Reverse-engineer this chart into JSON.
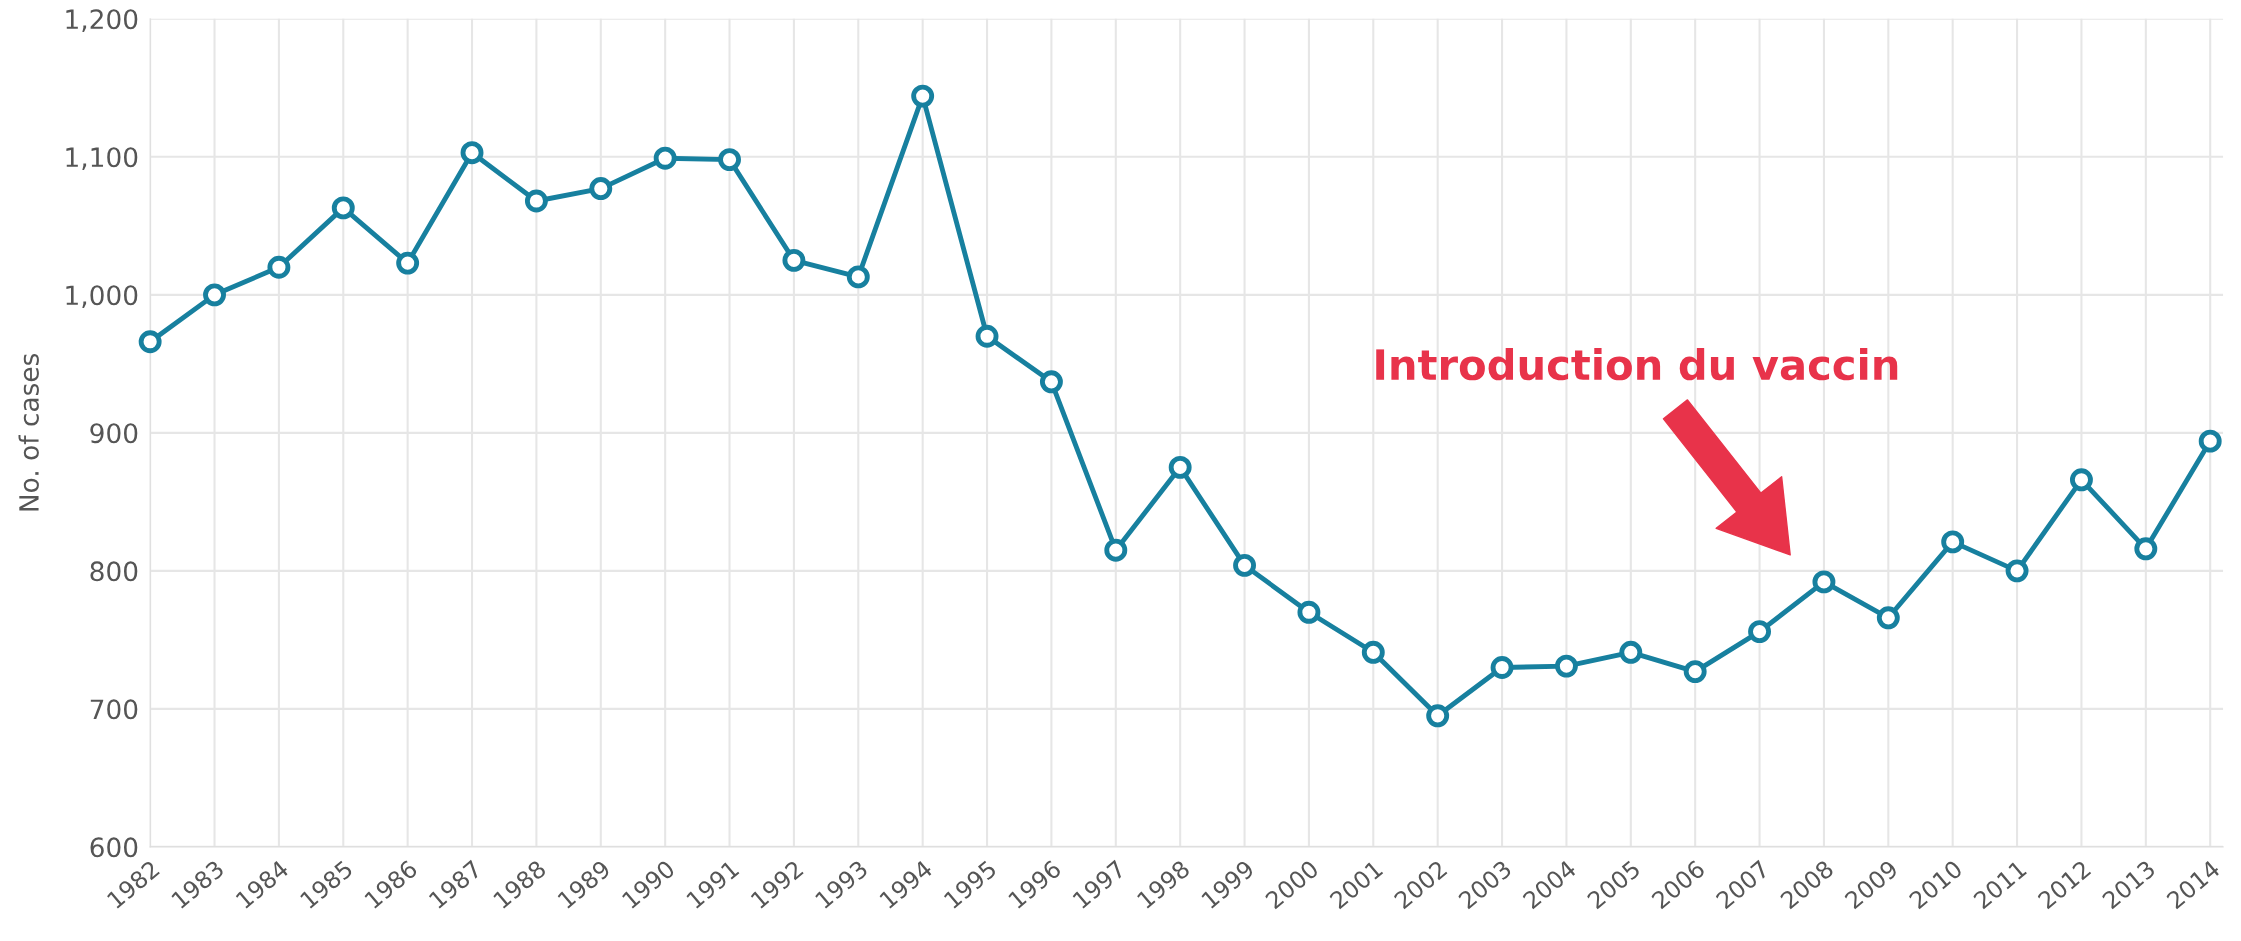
{
  "chart_data": {
    "type": "line",
    "ylabel": "No. of cases",
    "categories": [
      "1982",
      "1983",
      "1984",
      "1985",
      "1986",
      "1987",
      "1988",
      "1989",
      "1990",
      "1991",
      "1992",
      "1993",
      "1994",
      "1995",
      "1996",
      "1997",
      "1998",
      "1999",
      "2000",
      "2001",
      "2002",
      "2003",
      "2004",
      "2005",
      "2006",
      "2007",
      "2008",
      "2009",
      "2010",
      "2011",
      "2012",
      "2013",
      "2014"
    ],
    "series": [
      {
        "color": "#17809f",
        "values": [
          966,
          1000,
          1020,
          1063,
          1023,
          1103,
          1068,
          1077,
          1099,
          1098,
          1025,
          1013,
          1144,
          970,
          937,
          815,
          875,
          804,
          770,
          741,
          695,
          730,
          731,
          741,
          727,
          756,
          792,
          766,
          821,
          800,
          866,
          816,
          894
        ]
      }
    ],
    "ylim": [
      600,
      1200
    ],
    "yticks": [
      600,
      700,
      800,
      900,
      {
        "value": 1000,
        "label": "1,000"
      },
      {
        "value": 1100,
        "label": "1,100"
      },
      {
        "value": 1200,
        "label": "1,200"
      }
    ],
    "grid": true,
    "marker": "circle",
    "line_style": "solid",
    "legend": false,
    "annotations": [
      "Introduction du vaccin"
    ]
  }
}
